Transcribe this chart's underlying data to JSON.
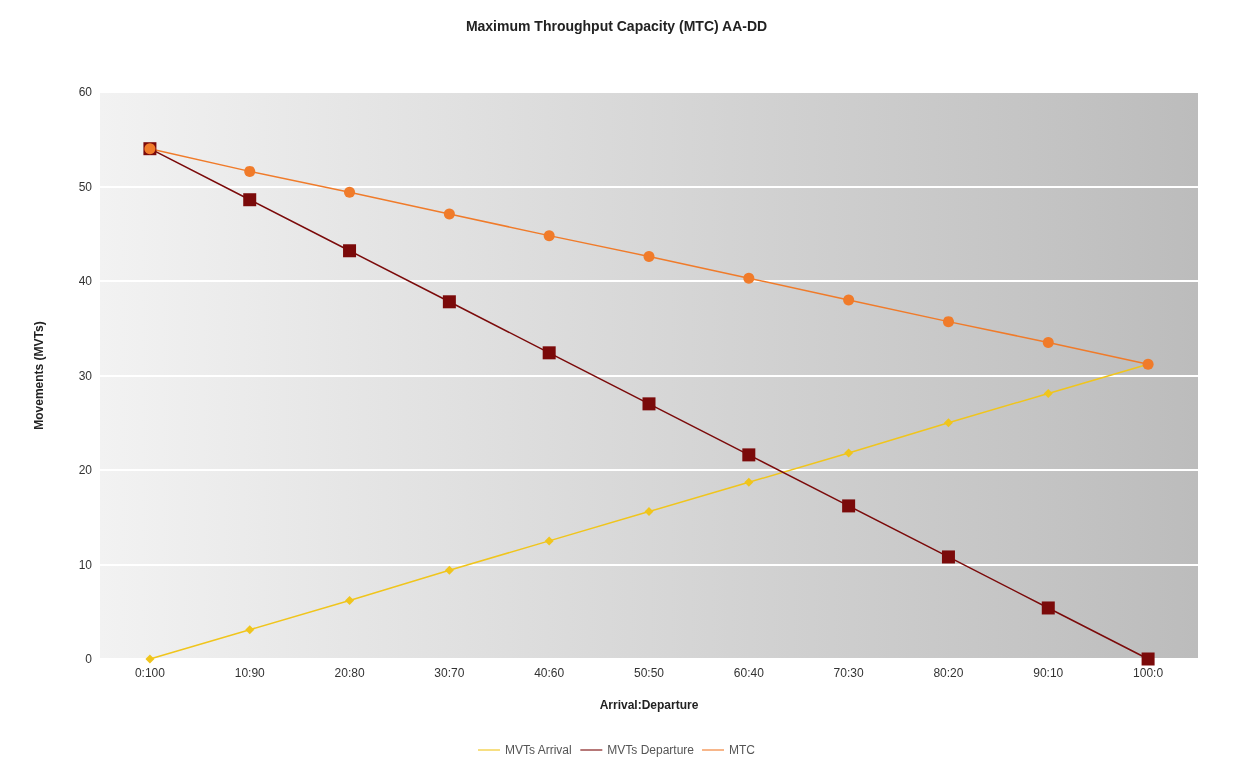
{
  "chart_data": {
    "type": "line",
    "title": "Maximum Throughput Capacity (MTC) AA-DD",
    "xlabel": "Arrival:Departure",
    "ylabel": "Movements (MVTs)",
    "categories": [
      "0:100",
      "10:90",
      "20:80",
      "30:70",
      "40:60",
      "50:50",
      "60:40",
      "70:30",
      "80:20",
      "90:10",
      "100:0"
    ],
    "series": [
      {
        "name": "MVTs Arrival",
        "color": "#f0c51c",
        "marker": "diamond",
        "values": [
          0,
          3.1,
          6.2,
          9.4,
          12.5,
          15.6,
          18.7,
          21.8,
          25.0,
          28.1,
          31.2
        ]
      },
      {
        "name": "MVTs Departure",
        "color": "#7b0a0a",
        "marker": "square",
        "values": [
          54,
          48.6,
          43.2,
          37.8,
          32.4,
          27.0,
          21.6,
          16.2,
          10.8,
          5.4,
          0
        ]
      },
      {
        "name": "MTC",
        "color": "#f07b2a",
        "marker": "circle",
        "values": [
          54,
          51.6,
          49.4,
          47.1,
          44.8,
          42.6,
          40.3,
          38.0,
          35.7,
          33.5,
          31.2
        ]
      }
    ],
    "ylim": [
      0,
      60
    ],
    "yticks": [
      0,
      10,
      20,
      30,
      40,
      50,
      60
    ],
    "grid": "y",
    "legend": "bottom",
    "line_style": "solid"
  }
}
